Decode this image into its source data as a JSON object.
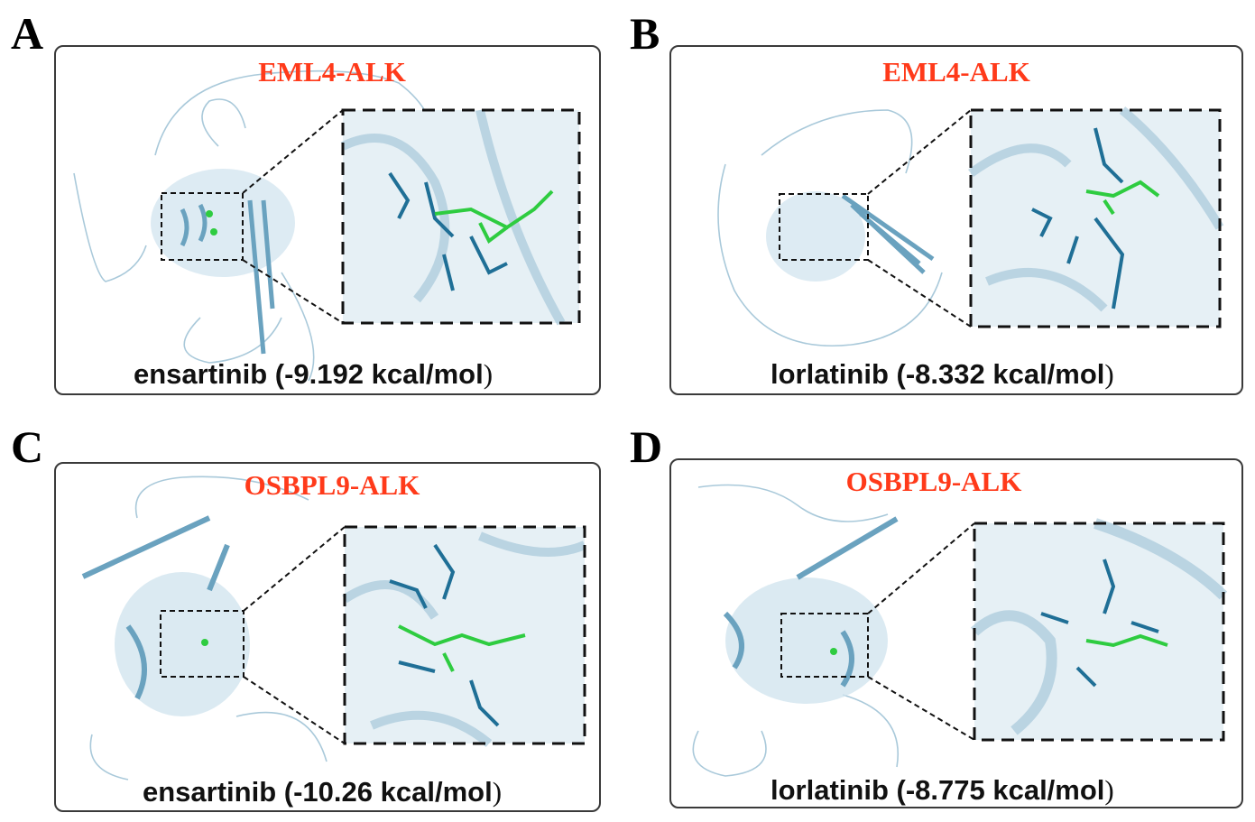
{
  "panels": [
    {
      "letter": "A",
      "target": "EML4-ALK",
      "drug": "ensartinib",
      "energy": "(-9.192 kcal/mol",
      "close": ")"
    },
    {
      "letter": "B",
      "target": "EML4-ALK",
      "drug": "lorlatinib",
      "energy": "(-8.332 kcal/mol",
      "close": ")"
    },
    {
      "letter": "C",
      "target": "OSBPL9-ALK",
      "drug": "ensartinib",
      "energy": "(-10.26 kcal/mol",
      "close": ")"
    },
    {
      "letter": "D",
      "target": "OSBPL9-ALK",
      "drug": "lorlatinib",
      "energy": "(-8.775 kcal/mol",
      "close": ")"
    }
  ],
  "colors": {
    "protein": "#8fbcd4",
    "residue": "#1f6f96",
    "ligand": "#2ecc40",
    "label": "#ff3a1a"
  }
}
